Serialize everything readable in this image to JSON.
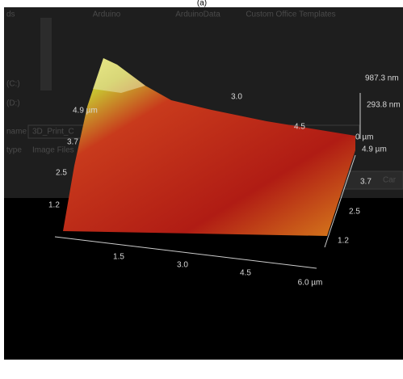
{
  "figure_label": "(a)",
  "dialog": {
    "folders": [
      "Arduino",
      "ArduinoData",
      "Custom Office Templates"
    ],
    "sidebar": [
      "ds",
      "(C:)",
      "(D:)"
    ],
    "fields": [
      "name",
      "type"
    ],
    "inputs": [
      "3D_Print_C",
      "Image Files"
    ],
    "button": "Car"
  },
  "height_scale": {
    "max": "987.3 nm",
    "mid": "293.8 nm",
    "min": "0 µm"
  },
  "y_axis_right": [
    "4.9 µm",
    "3.7",
    "2.5",
    "1.2"
  ],
  "x_axis": [
    "1.5",
    "3.0",
    "4.5",
    "6.0 µm"
  ],
  "y_axis_left": [
    "4.9 µm",
    "3.7",
    "2.5",
    "1.2"
  ],
  "back_labels": [
    "3.0",
    "4.5"
  ]
}
